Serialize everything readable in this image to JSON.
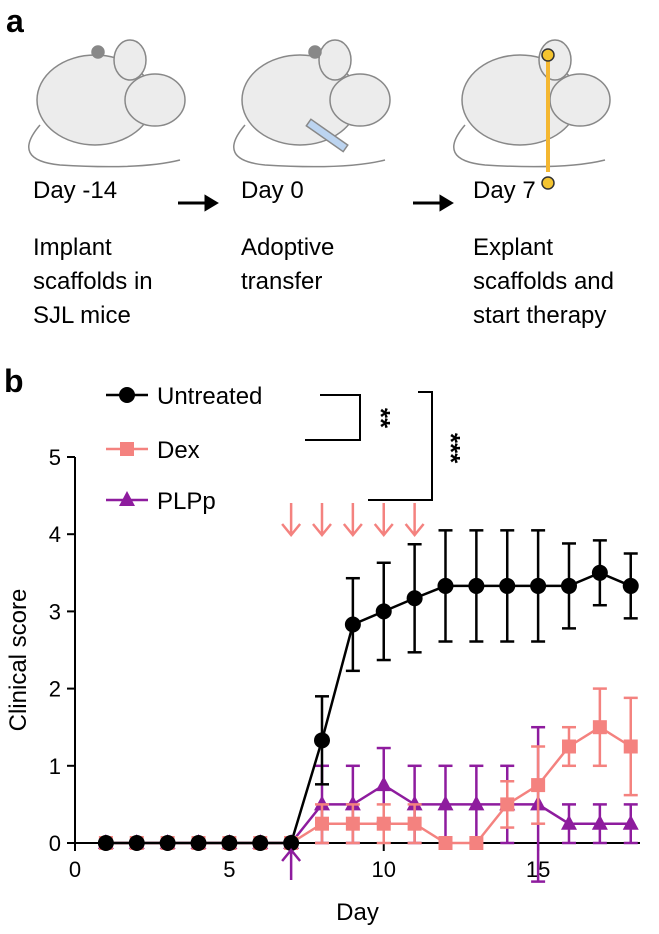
{
  "panel_a": {
    "label": "a",
    "steps": [
      {
        "day": "Day -14",
        "lines": [
          "Implant",
          "scaffolds in",
          "SJL mice"
        ]
      },
      {
        "day": "Day 0",
        "lines": [
          "Adoptive",
          "transfer"
        ]
      },
      {
        "day": "Day 7",
        "lines": [
          "Explant",
          "scaffolds and",
          "start therapy"
        ]
      }
    ]
  },
  "panel_b_label": "b",
  "chart_data": {
    "type": "line",
    "x_label": "Day",
    "y_label": "Clinical score",
    "x": [
      1,
      2,
      3,
      4,
      5,
      6,
      7,
      8,
      9,
      10,
      11,
      12,
      13,
      14,
      15,
      16,
      17,
      18
    ],
    "series": [
      {
        "name": "Untreated",
        "color": "#000000",
        "marker": "circle",
        "values": [
          0,
          0,
          0,
          0,
          0,
          0,
          0,
          1.33,
          2.83,
          3,
          3.17,
          3.33,
          3.33,
          3.33,
          3.33,
          3.33,
          3.5,
          3.33
        ],
        "errors": [
          0,
          0,
          0,
          0,
          0,
          0,
          0,
          0.57,
          0.6,
          0.63,
          0.7,
          0.72,
          0.72,
          0.72,
          0.72,
          0.55,
          0.42,
          0.42
        ]
      },
      {
        "name": "Dex",
        "color": "#f4827f",
        "marker": "square",
        "values": [
          0,
          0,
          0,
          0,
          0,
          0,
          0,
          0.25,
          0.25,
          0.25,
          0.25,
          0,
          0,
          0.5,
          0.75,
          1.25,
          1.5,
          1.25
        ],
        "errors": [
          0,
          0,
          0,
          0,
          0,
          0,
          0,
          0.25,
          0.25,
          0.25,
          0.25,
          0,
          0,
          0.3,
          0.5,
          0.25,
          0.5,
          0.63
        ]
      },
      {
        "name": "PLPp",
        "color": "#8e1c9e",
        "marker": "triangle",
        "values": [
          0,
          0,
          0,
          0,
          0,
          0,
          0,
          0.5,
          0.5,
          0.75,
          0.5,
          0.5,
          0.5,
          0.5,
          0.5,
          0.25,
          0.25,
          0.25
        ],
        "errors": [
          0,
          0,
          0,
          0,
          0,
          0,
          0,
          0.5,
          0.5,
          0.48,
          0.5,
          0.5,
          0.5,
          0.5,
          1.0,
          0.25,
          0.25,
          0.25
        ]
      }
    ],
    "xlim": [
      0,
      18.3
    ],
    "ylim": [
      0,
      5
    ],
    "xticks": [
      0,
      5,
      10,
      15
    ],
    "yticks": [
      0,
      1,
      2,
      3,
      4,
      5
    ],
    "dex_arrows_x": [
      7,
      8,
      9,
      10,
      11
    ],
    "plpp_arrow_x": 7,
    "annotations": [
      "**",
      "***"
    ],
    "legend": "upper left"
  }
}
